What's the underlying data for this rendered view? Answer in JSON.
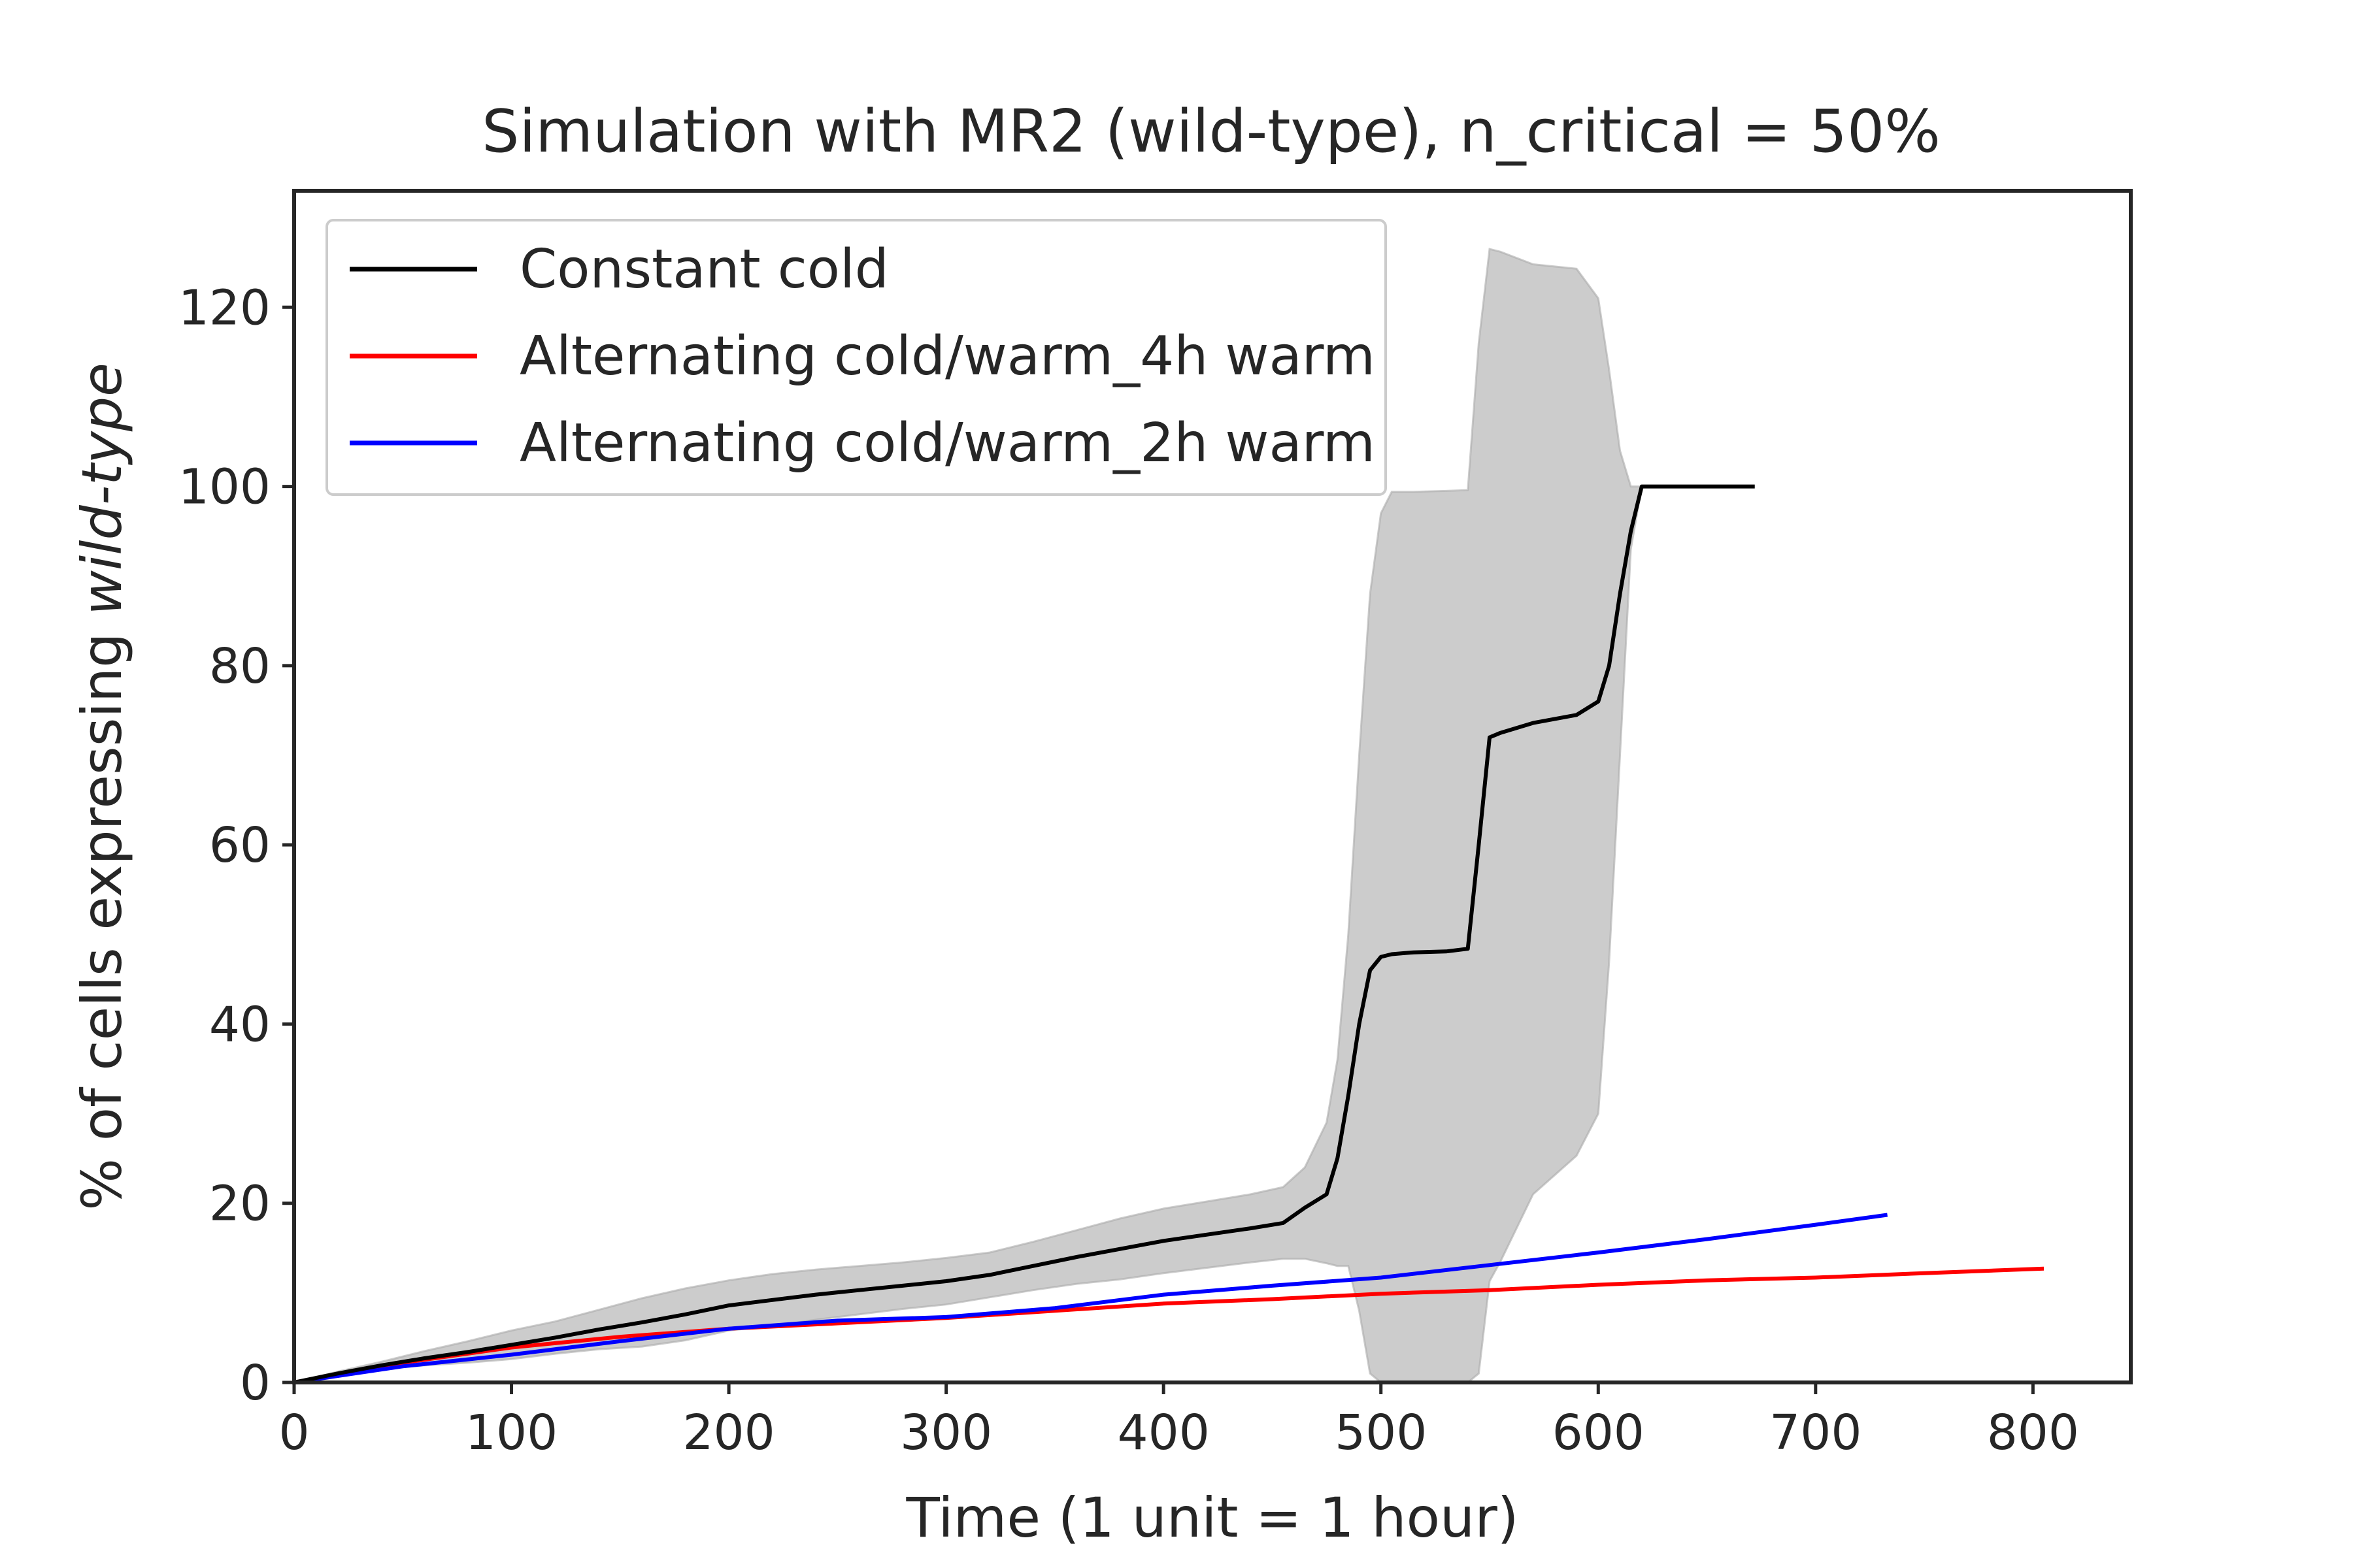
{
  "chart_data": {
    "type": "line",
    "title": "Simulation with MR2 (wild-type), n_critical = 50%",
    "xlabel": "Time (1 unit = 1 hour)",
    "ylabel_prefix": "% of cells expressing ",
    "ylabel_italic": "wild-type",
    "xlim": [
      0,
      845
    ],
    "ylim": [
      0,
      133
    ],
    "xticks": [
      0,
      100,
      200,
      300,
      400,
      500,
      600,
      700,
      800
    ],
    "yticks": [
      0,
      20,
      40,
      60,
      80,
      100,
      120
    ],
    "grid": false,
    "legend_position": "upper-left",
    "series": [
      {
        "name": "Constant cold",
        "color": "#000000",
        "x": [
          0,
          20,
          40,
          60,
          80,
          100,
          120,
          140,
          160,
          180,
          200,
          220,
          240,
          260,
          280,
          300,
          320,
          340,
          360,
          380,
          400,
          420,
          440,
          455,
          465,
          475,
          480,
          485,
          490,
          495,
          500,
          505,
          515,
          530,
          540,
          545,
          550,
          555,
          570,
          590,
          600,
          605,
          610,
          615,
          620,
          640,
          660,
          672
        ],
        "y": [
          0,
          1,
          1.9,
          2.7,
          3.4,
          4.2,
          5,
          5.9,
          6.7,
          7.6,
          8.6,
          9.2,
          9.8,
          10.3,
          10.8,
          11.3,
          12,
          13,
          14,
          14.9,
          15.8,
          16.5,
          17.2,
          17.8,
          19.5,
          21,
          25,
          32,
          40,
          46,
          47.5,
          47.8,
          48,
          48.1,
          48.4,
          60,
          72,
          72.5,
          73.6,
          74.5,
          76,
          80,
          88,
          95,
          100,
          100,
          100,
          100
        ]
      },
      {
        "name": "Alternating cold/warm_4h warm",
        "color": "#ff0000",
        "x": [
          0,
          50,
          100,
          150,
          200,
          250,
          300,
          350,
          400,
          450,
          500,
          550,
          600,
          650,
          700,
          750,
          805
        ],
        "y": [
          0,
          2.2,
          3.9,
          5.1,
          6,
          6.6,
          7.2,
          8,
          8.8,
          9.3,
          9.9,
          10.3,
          10.9,
          11.4,
          11.7,
          12.2,
          12.7
        ]
      },
      {
        "name": "Alternating cold/warm_2h warm",
        "color": "#0000ff",
        "x": [
          0,
          50,
          100,
          150,
          200,
          250,
          300,
          350,
          400,
          450,
          500,
          550,
          600,
          650,
          700,
          733
        ],
        "y": [
          0,
          1.8,
          3.1,
          4.6,
          6,
          6.9,
          7.3,
          8.3,
          9.8,
          10.8,
          11.7,
          13.1,
          14.5,
          16,
          17.6,
          18.7
        ]
      }
    ],
    "band": {
      "series": "Constant cold",
      "color": "#cccccc",
      "x": [
        0,
        20,
        40,
        60,
        80,
        100,
        120,
        140,
        160,
        180,
        200,
        220,
        240,
        260,
        280,
        300,
        320,
        340,
        360,
        380,
        400,
        420,
        440,
        455,
        465,
        475,
        480,
        485,
        490,
        495,
        500,
        505,
        515,
        530,
        540,
        545,
        550,
        555,
        570,
        590,
        600,
        605,
        610,
        615,
        620,
        640,
        660,
        672
      ],
      "upper": [
        0,
        1.2,
        2.3,
        3.5,
        4.6,
        5.8,
        6.8,
        8.1,
        9.4,
        10.5,
        11.4,
        12.1,
        12.6,
        13,
        13.4,
        13.9,
        14.5,
        15.7,
        17,
        18.3,
        19.4,
        20.2,
        21,
        21.8,
        24,
        29,
        36,
        50,
        70,
        88,
        97,
        99.4,
        99.4,
        99.5,
        99.6,
        116,
        126.5,
        126.2,
        124.8,
        124.3,
        121,
        113,
        104,
        100,
        100,
        100,
        100,
        100
      ],
      "lower": [
        0,
        0.8,
        1.5,
        1.9,
        2.2,
        2.6,
        3.2,
        3.7,
        4,
        4.7,
        5.8,
        6.3,
        7,
        7.6,
        8.2,
        8.7,
        9.5,
        10.3,
        11,
        11.5,
        12.2,
        12.8,
        13.4,
        13.8,
        13.8,
        13.3,
        13,
        13,
        8,
        1,
        0,
        0,
        0,
        0,
        0,
        1,
        11.3,
        13.5,
        21,
        25.3,
        30,
        47,
        70,
        93,
        100,
        100,
        100,
        100
      ]
    }
  }
}
